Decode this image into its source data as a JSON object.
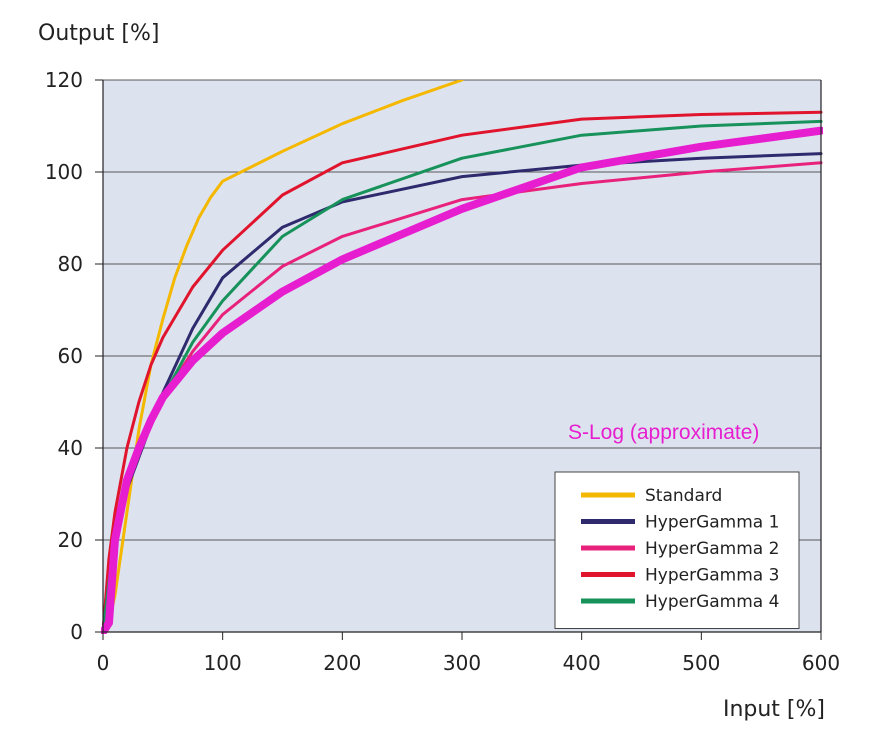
{
  "chart_data": {
    "type": "line",
    "xlabel": "Input [%]",
    "ylabel": "Output [%]",
    "xlim": [
      0,
      600
    ],
    "ylim": [
      0,
      120
    ],
    "x_ticks": [
      0,
      100,
      200,
      300,
      400,
      500,
      600
    ],
    "y_ticks": [
      0,
      20,
      40,
      60,
      80,
      100,
      120
    ],
    "grid": "horizontal",
    "background": "#dde3ee",
    "legend_position": "bottom-right",
    "annotation": {
      "text": "S-Log (approximate)",
      "color": "#e61ecf"
    },
    "series": [
      {
        "name": "Standard",
        "color": "#f5b800",
        "width": 3,
        "in_legend": true,
        "x": [
          0,
          5,
          10,
          20,
          30,
          40,
          50,
          60,
          70,
          80,
          90,
          100,
          150,
          200,
          250,
          300
        ],
        "y": [
          0,
          2,
          8,
          26,
          44,
          58,
          68,
          77,
          84,
          90,
          94.5,
          98,
          104.5,
          110.5,
          115.5,
          120
        ]
      },
      {
        "name": "HyperGamma 1",
        "color": "#2f2a6e",
        "width": 3,
        "in_legend": true,
        "x": [
          0,
          5,
          10,
          20,
          30,
          40,
          50,
          75,
          100,
          150,
          200,
          300,
          400,
          500,
          600
        ],
        "y": [
          0,
          14,
          22,
          31,
          38,
          45,
          52,
          66,
          77,
          88,
          93.5,
          99,
          101.5,
          103,
          104
        ]
      },
      {
        "name": "HyperGamma 2",
        "color": "#e8227c",
        "width": 3,
        "in_legend": true,
        "x": [
          0,
          5,
          10,
          20,
          30,
          40,
          50,
          75,
          100,
          150,
          200,
          300,
          400,
          500,
          600
        ],
        "y": [
          0,
          15,
          24,
          33,
          40,
          46,
          51,
          61,
          69,
          79.5,
          86,
          94,
          97.5,
          100,
          102
        ]
      },
      {
        "name": "HyperGamma 3",
        "color": "#e0142c",
        "width": 3,
        "in_legend": true,
        "x": [
          0,
          5,
          10,
          20,
          30,
          40,
          50,
          75,
          100,
          150,
          200,
          300,
          400,
          500,
          600
        ],
        "y": [
          0,
          16,
          26,
          40,
          50,
          58,
          64,
          75,
          83,
          95,
          102,
          108,
          111.5,
          112.5,
          113
        ]
      },
      {
        "name": "HyperGamma 4",
        "color": "#16925a",
        "width": 3,
        "in_legend": true,
        "x": [
          0,
          5,
          10,
          20,
          30,
          40,
          50,
          75,
          100,
          150,
          200,
          300,
          400,
          500,
          600
        ],
        "y": [
          0,
          11,
          20,
          32,
          39,
          45,
          51,
          63,
          72,
          86,
          94,
          103,
          108,
          110,
          111
        ]
      },
      {
        "name": "",
        "color": "#e61ecf",
        "width": 8,
        "in_legend": false,
        "x": [
          0,
          5,
          10,
          20,
          30,
          40,
          50,
          75,
          100,
          150,
          200,
          300,
          400,
          500,
          600
        ],
        "y": [
          0,
          2,
          20,
          33,
          40,
          46,
          51,
          59,
          65,
          74,
          81,
          92,
          101,
          105.5,
          109
        ]
      }
    ]
  }
}
